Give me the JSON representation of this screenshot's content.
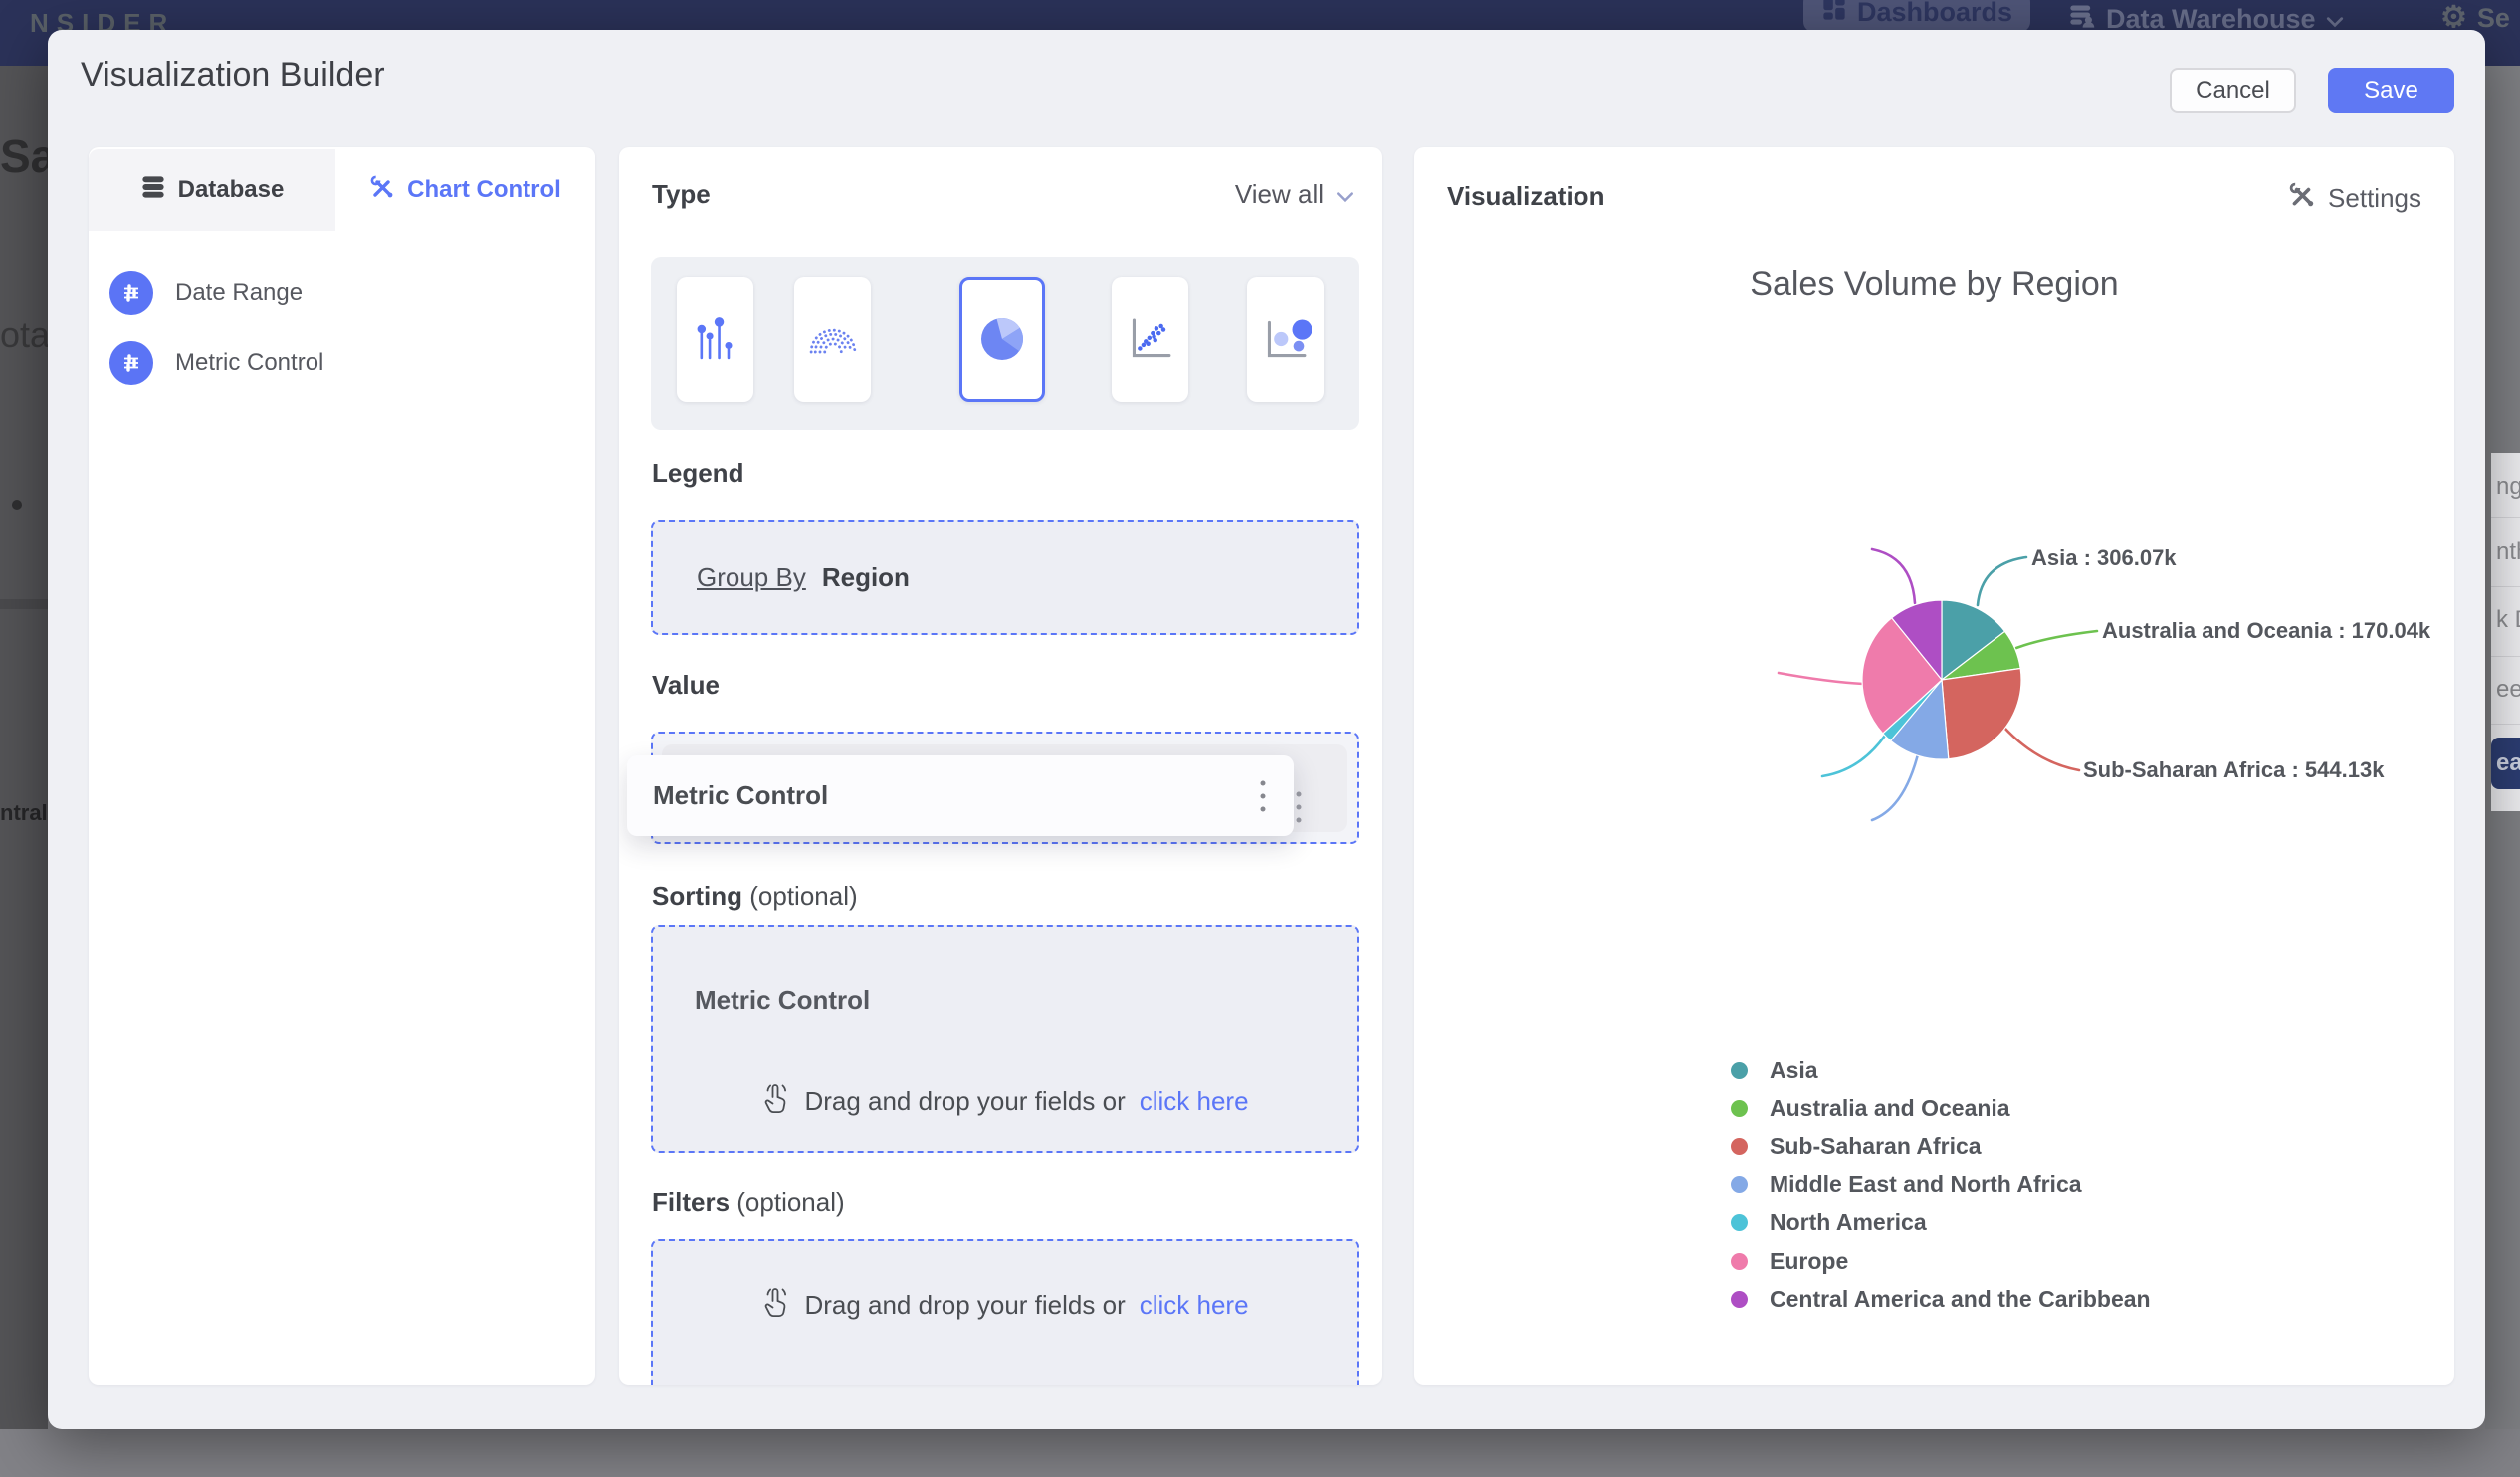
{
  "topbar": {
    "logo": "NSIDER",
    "dashboards": "Dashboards",
    "data_warehouse": "Data Warehouse",
    "settings_abbrev": "Se"
  },
  "modal": {
    "title": "Visualization Builder",
    "cancel": "Cancel",
    "save": "Save"
  },
  "sidebar": {
    "tabs": [
      {
        "label": "Database"
      },
      {
        "label": "Chart Control"
      }
    ],
    "items": [
      {
        "label": "Date Range"
      },
      {
        "label": "Metric Control"
      }
    ]
  },
  "builder": {
    "type_label": "Type",
    "view_all": "View all",
    "chart_types": [
      "lollipop",
      "arc-dots",
      "pie",
      "scatter",
      "bubble"
    ],
    "selected_chart_type": "pie",
    "legend_label": "Legend",
    "group_by_label": "Group By",
    "group_by_value": "Region",
    "value_label": "Value",
    "value_chip": "Metric Control",
    "dragging_chip": "Metric Control",
    "sorting_label": "Sorting",
    "optional_suffix": "(optional)",
    "sorting_chip": "Metric Control",
    "dropzone_text": "Drag and drop your fields or",
    "dropzone_link": "click here",
    "filters_label": "Filters"
  },
  "visualization": {
    "panel_title": "Visualization",
    "settings": "Settings"
  },
  "chart_data": {
    "type": "pie",
    "title": "Sales Volume by Region",
    "unit": "k",
    "legend_position": "bottom-left",
    "series": [
      {
        "name": "Asia",
        "value": 306.07,
        "value_label": "306.07k",
        "color": "#4ba0a8"
      },
      {
        "name": "Australia and Oceania",
        "value": 170.04,
        "value_label": "170.04k",
        "color": "#6dc24f"
      },
      {
        "name": "Sub-Saharan Africa",
        "value": 544.13,
        "value_label": "544.13k",
        "color": "#d4655f"
      },
      {
        "name": "Middle East and North Africa",
        "value": 260.73,
        "value_label": "260.73k",
        "color": "#84a9e6"
      },
      {
        "name": "North America",
        "value": 45.34,
        "value_label": "45.34k",
        "color": "#4dc3d8"
      },
      {
        "name": "Europe",
        "value": 544.13,
        "value_label": "544.13k",
        "color": "#ef7bab"
      },
      {
        "name": "Central America and the Caribbean",
        "value": 226.73,
        "value_label": "226.73k",
        "color": "#ae4ec4"
      }
    ]
  },
  "icons": {
    "tab_database": "database-icon",
    "tab_chart_control": "tools-icon",
    "sidebar_item": "sliders-icon",
    "view_all": "chevron-down-icon",
    "chips": "kebab-menu-icon",
    "dropzone": "tap-hand-icon",
    "settings": "tools-icon",
    "topbar": [
      "grid-icon",
      "database-user-icon",
      "gear-icon"
    ]
  },
  "background": {
    "left_fragments": {
      "heading": "Sal",
      "subheading": "ota",
      "small_label": "ntral"
    },
    "right_items": [
      {
        "label": "nge"
      },
      {
        "label": "nth"
      },
      {
        "label": "k D"
      },
      {
        "label": "eek"
      },
      {
        "label": "ear",
        "selected": true
      }
    ]
  }
}
